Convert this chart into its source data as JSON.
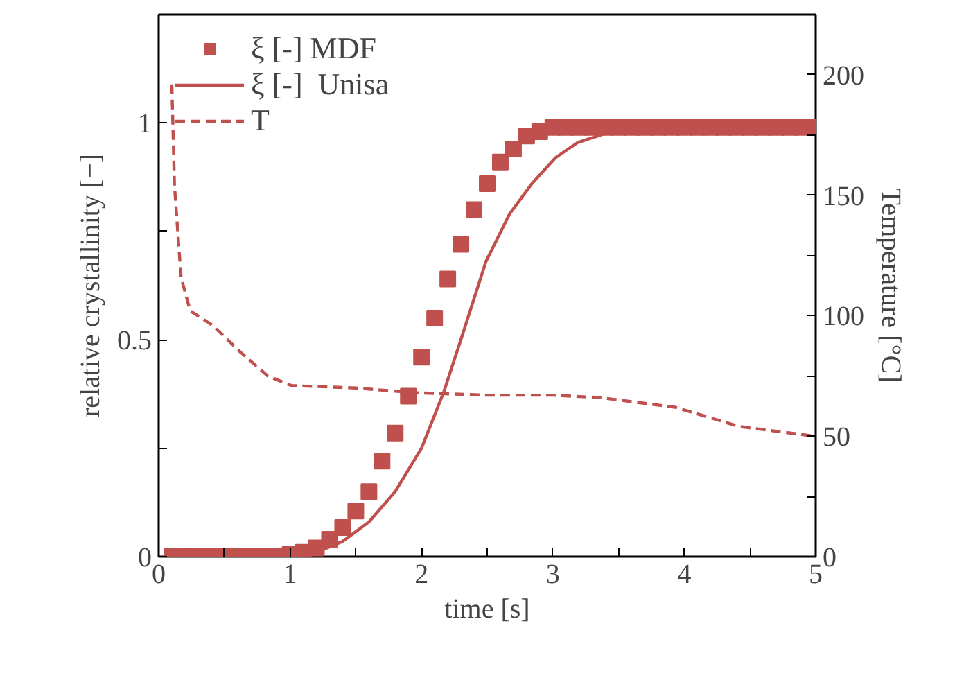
{
  "chart_data": {
    "type": "line",
    "xlabel": "time [s]",
    "ylabel": "relative crystallinity [−]",
    "y2label": "Temperature [°C]",
    "xlim": [
      0,
      5
    ],
    "xticks": [
      0,
      {
        "value": 0.5,
        "label": null
      },
      1,
      {
        "value": 1.5,
        "label": null
      },
      2,
      {
        "value": 2.5,
        "label": null
      },
      3,
      {
        "value": 3.5,
        "label": null
      },
      4,
      {
        "value": 4.5,
        "label": null
      },
      5
    ],
    "ylim": [
      0,
      1.25
    ],
    "yticks": [
      0,
      {
        "value": 0.25,
        "label": null
      },
      0.5,
      {
        "value": 0.75,
        "label": null
      },
      1
    ],
    "y2lim": [
      0,
      225
    ],
    "y2ticks": [
      0,
      {
        "value": 25,
        "label": null
      },
      50,
      {
        "value": 75,
        "label": null
      },
      100,
      {
        "value": 125,
        "label": null
      },
      150,
      {
        "value": 175,
        "label": null
      },
      200
    ],
    "grid": false,
    "legend": "top left",
    "series": [
      {
        "name": "ξ [-] MDF",
        "type": "scatter",
        "marker": "square",
        "color": "#c0504d",
        "x": [
          0.1,
          0.2,
          0.3,
          0.4,
          0.5,
          0.6,
          0.7,
          0.8,
          0.9,
          1.0,
          1.1,
          1.2,
          1.3,
          1.4,
          1.5,
          1.6,
          1.7,
          1.8,
          1.9,
          2.0,
          2.1,
          2.2,
          2.3,
          2.4,
          2.5,
          2.6,
          2.7,
          2.8,
          2.9,
          3.0,
          3.1,
          3.2,
          3.3,
          3.4,
          3.5,
          3.6,
          3.7,
          3.8,
          3.9,
          4.0,
          4.1,
          4.2,
          4.3,
          4.4,
          4.5,
          4.6,
          4.7,
          4.8,
          4.9,
          5.0
        ],
        "values": [
          0,
          0,
          0,
          0,
          0,
          0,
          0,
          0,
          0,
          0.005,
          0.01,
          0.02,
          0.04,
          0.067,
          0.105,
          0.15,
          0.22,
          0.285,
          0.37,
          0.46,
          0.55,
          0.64,
          0.72,
          0.8,
          0.86,
          0.91,
          0.94,
          0.97,
          0.98,
          0.99,
          0.99,
          0.99,
          0.99,
          0.99,
          0.99,
          0.99,
          0.99,
          0.99,
          0.99,
          0.99,
          0.99,
          0.99,
          0.99,
          0.99,
          0.99,
          0.99,
          0.99,
          0.99,
          0.99,
          0.99
        ]
      },
      {
        "name": "ξ [-]  Unisa",
        "line_style": "solid",
        "color": "#c0504d",
        "x": [
          0.1,
          1.0,
          1.2,
          1.4,
          1.6,
          1.8,
          2.0,
          2.17,
          2.31,
          2.49,
          2.67,
          2.84,
          3.02,
          3.19,
          3.44,
          3.6,
          5.0
        ],
        "values": [
          0,
          0,
          0.01,
          0.035,
          0.08,
          0.15,
          0.25,
          0.38,
          0.51,
          0.68,
          0.79,
          0.86,
          0.92,
          0.955,
          0.98,
          0.99,
          0.99
        ]
      },
      {
        "name": "T",
        "type": "line",
        "line_style": "dashed",
        "axis": "y2",
        "color": "#c0504d",
        "x": [
          0.1,
          0.12,
          0.17,
          0.24,
          0.41,
          0.62,
          0.83,
          1.01,
          1.5,
          1.96,
          2.5,
          3.0,
          3.36,
          3.93,
          4.42,
          4.99
        ],
        "values": [
          196,
          154,
          116,
          102,
          96,
          85,
          75,
          71,
          70,
          68,
          67,
          67,
          66,
          62,
          54,
          50
        ]
      }
    ]
  }
}
